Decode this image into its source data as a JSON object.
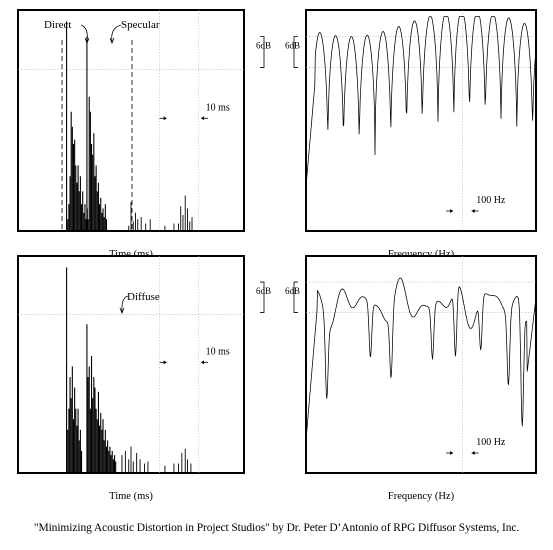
{
  "caption": "\"Minimizing Acoustic Distortion in Project Studios\" by Dr. Peter D’Antonio of RPG Diffusor Systems, Inc.",
  "xlabels": {
    "time": "Time (ms)",
    "frequency": "Frequency (Hz)"
  },
  "scale_labels": {
    "db": "6dB",
    "ms": "10 ms",
    "hz": "100 Hz"
  },
  "chart_data": [
    {
      "id": "time-specular",
      "type": "impulse",
      "xlabel": "Time (ms)",
      "annotations": [
        "Direct",
        "Specular"
      ],
      "direct_t": 0.43,
      "bursts": [
        {
          "t": 0.43,
          "h": [
            0.97,
            0.05,
            0.12,
            0.25,
            0.55,
            0.48,
            0.4,
            0.42,
            0.3,
            0.22,
            0.3,
            0.18,
            0.25,
            0.12,
            0.18,
            0.08,
            0.12,
            0.05,
            0.1
          ]
        },
        {
          "t": 0.61,
          "h": [
            0.9,
            0.05,
            0.62,
            0.55,
            0.4,
            0.35,
            0.45,
            0.25,
            0.3,
            0.18,
            0.22,
            0.12,
            0.15,
            0.08,
            0.1,
            0.06,
            0.12,
            0.05
          ]
        }
      ],
      "tail": [
        [
          0.98,
          0.02
        ],
        [
          1.0,
          0.13
        ],
        [
          1.02,
          0.04
        ],
        [
          1.04,
          0.08
        ],
        [
          1.06,
          0.05
        ],
        [
          1.09,
          0.06
        ],
        [
          1.13,
          0.03
        ],
        [
          1.17,
          0.05
        ],
        [
          1.3,
          0.02
        ],
        [
          1.38,
          0.03
        ],
        [
          1.42,
          0.03
        ],
        [
          1.44,
          0.11
        ],
        [
          1.46,
          0.07
        ],
        [
          1.48,
          0.16
        ],
        [
          1.5,
          0.1
        ],
        [
          1.52,
          0.04
        ],
        [
          1.54,
          0.06
        ]
      ],
      "scale_bar": "10 ms"
    },
    {
      "id": "freq-specular",
      "type": "line",
      "xlabel": "Frequency (Hz)",
      "style": "comb",
      "scale_bar_db": "6dB",
      "scale_bar_hz": "100 Hz"
    },
    {
      "id": "time-diffuse",
      "type": "impulse",
      "xlabel": "Time (ms)",
      "annotations": [
        "Diffuse"
      ],
      "direct_t": 0.43,
      "bursts": [
        {
          "t": 0.43,
          "h": [
            0.97,
            0.2,
            0.3,
            0.45,
            0.35,
            0.5,
            0.25,
            0.4,
            0.3,
            0.22,
            0.3,
            0.15,
            0.2,
            0.1
          ]
        },
        {
          "t": 0.61,
          "h": [
            0.7,
            0.45,
            0.5,
            0.3,
            0.55,
            0.35,
            0.45,
            0.4,
            0.3,
            0.25,
            0.38,
            0.22,
            0.28,
            0.2,
            0.25,
            0.15,
            0.2,
            0.12,
            0.15,
            0.1,
            0.12,
            0.08,
            0.1,
            0.06,
            0.08,
            0.05
          ]
        }
      ],
      "tail": [
        [
          0.92,
          0.08
        ],
        [
          0.95,
          0.1
        ],
        [
          0.98,
          0.06
        ],
        [
          1.0,
          0.12
        ],
        [
          1.02,
          0.05
        ],
        [
          1.05,
          0.09
        ],
        [
          1.08,
          0.06
        ],
        [
          1.12,
          0.04
        ],
        [
          1.15,
          0.05
        ],
        [
          1.3,
          0.03
        ],
        [
          1.38,
          0.04
        ],
        [
          1.42,
          0.04
        ],
        [
          1.45,
          0.09
        ],
        [
          1.48,
          0.11
        ],
        [
          1.5,
          0.06
        ],
        [
          1.53,
          0.04
        ]
      ],
      "scale_bar": "10 ms"
    },
    {
      "id": "freq-diffuse",
      "type": "line",
      "xlabel": "Frequency (Hz)",
      "style": "smooth",
      "scale_bar_db": "6dB",
      "scale_bar_hz": "100 Hz"
    }
  ]
}
